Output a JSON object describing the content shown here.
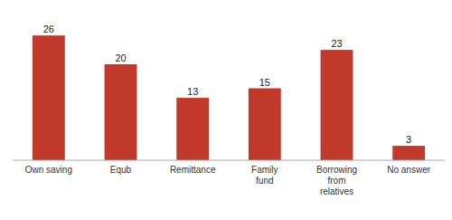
{
  "chart_data": {
    "type": "bar",
    "categories": [
      "Own saving",
      "Equb",
      "Remittance",
      "Family\nfund",
      "Borrowing\nfrom\nrelatives",
      "No answer"
    ],
    "values": [
      26,
      20,
      13,
      15,
      23,
      3
    ],
    "color": "#c0392b",
    "ylim": [
      0,
      30
    ],
    "grid": false,
    "data_labels": true,
    "tick_labels": "x"
  }
}
